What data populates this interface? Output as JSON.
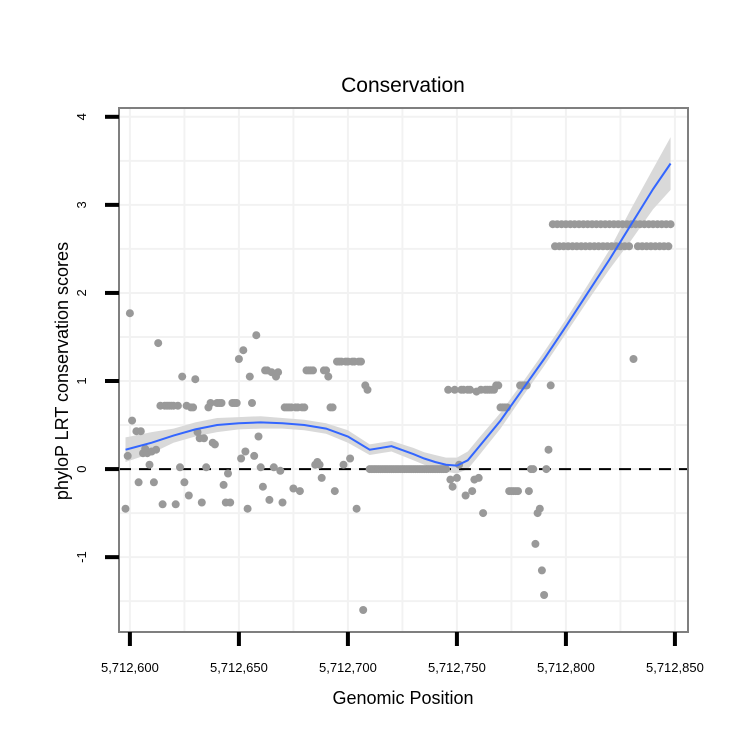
{
  "chart_data": {
    "type": "scatter",
    "title": "Conservation",
    "xlabel": "Genomic Position",
    "ylabel": "phyloP LRT conservation scores",
    "xlim": [
      5712595,
      5712856
    ],
    "ylim": [
      -1.85,
      4.1
    ],
    "x_ticks": [
      5712600,
      5712650,
      5712700,
      5712750,
      5712800,
      5712850
    ],
    "x_tick_labels": [
      "5,712,600",
      "5,712,650",
      "5,712,700",
      "5,712,750",
      "5,712,800",
      "5,712,850"
    ],
    "y_ticks": [
      -1,
      0,
      1,
      2,
      3,
      4
    ],
    "y_tick_labels": [
      "-1",
      "0",
      "1",
      "2",
      "3",
      "4"
    ],
    "grid": true,
    "colors": {
      "points": "#999999",
      "smooth_line": "#3366ff",
      "ribbon": "#d9d9d9",
      "panel_border": "#7f7f7f",
      "grid": "#f2f2f2",
      "reference_line": "#000000"
    },
    "reference_line": {
      "y": 0,
      "style": "dashed"
    },
    "series": [
      {
        "name": "phyloP points",
        "kind": "points",
        "points": [
          [
            5712598,
            -0.45
          ],
          [
            5712599,
            0.15
          ],
          [
            5712600,
            1.77
          ],
          [
            5712601,
            0.55
          ],
          [
            5712603,
            0.43
          ],
          [
            5712604,
            -0.15
          ],
          [
            5712605,
            0.43
          ],
          [
            5712606,
            0.18
          ],
          [
            5712607,
            0.23
          ],
          [
            5712608,
            0.18
          ],
          [
            5712609,
            0.05
          ],
          [
            5712610,
            0.2
          ],
          [
            5712611,
            -0.15
          ],
          [
            5712612,
            0.22
          ],
          [
            5712613,
            1.43
          ],
          [
            5712614,
            0.72
          ],
          [
            5712615,
            -0.4
          ],
          [
            5712616,
            0.72
          ],
          [
            5712617,
            0.72
          ],
          [
            5712618,
            0.72
          ],
          [
            5712619,
            0.72
          ],
          [
            5712620,
            0.72
          ],
          [
            5712621,
            -0.4
          ],
          [
            5712622,
            0.72
          ],
          [
            5712623,
            0.02
          ],
          [
            5712624,
            1.05
          ],
          [
            5712625,
            -0.15
          ],
          [
            5712626,
            0.72
          ],
          [
            5712627,
            -0.3
          ],
          [
            5712628,
            0.7
          ],
          [
            5712629,
            0.7
          ],
          [
            5712630,
            1.02
          ],
          [
            5712631,
            0.42
          ],
          [
            5712632,
            0.35
          ],
          [
            5712633,
            -0.38
          ],
          [
            5712634,
            0.35
          ],
          [
            5712635,
            0.02
          ],
          [
            5712636,
            0.7
          ],
          [
            5712637,
            0.75
          ],
          [
            5712638,
            0.3
          ],
          [
            5712639,
            0.28
          ],
          [
            5712640,
            0.75
          ],
          [
            5712641,
            0.75
          ],
          [
            5712642,
            0.75
          ],
          [
            5712643,
            -0.18
          ],
          [
            5712644,
            -0.38
          ],
          [
            5712645,
            -0.05
          ],
          [
            5712646,
            -0.38
          ],
          [
            5712647,
            0.75
          ],
          [
            5712648,
            0.75
          ],
          [
            5712649,
            0.75
          ],
          [
            5712650,
            1.25
          ],
          [
            5712651,
            0.12
          ],
          [
            5712652,
            1.35
          ],
          [
            5712653,
            0.2
          ],
          [
            5712654,
            -0.45
          ],
          [
            5712655,
            1.05
          ],
          [
            5712656,
            0.75
          ],
          [
            5712657,
            0.15
          ],
          [
            5712658,
            1.52
          ],
          [
            5712659,
            0.37
          ],
          [
            5712660,
            0.02
          ],
          [
            5712661,
            -0.2
          ],
          [
            5712662,
            1.12
          ],
          [
            5712663,
            1.12
          ],
          [
            5712664,
            -0.35
          ],
          [
            5712665,
            1.1
          ],
          [
            5712666,
            0.02
          ],
          [
            5712667,
            1.05
          ],
          [
            5712668,
            1.1
          ],
          [
            5712669,
            -0.02
          ],
          [
            5712670,
            -0.38
          ],
          [
            5712671,
            0.7
          ],
          [
            5712672,
            0.7
          ],
          [
            5712673,
            0.7
          ],
          [
            5712674,
            0.7
          ],
          [
            5712675,
            -0.22
          ],
          [
            5712676,
            0.7
          ],
          [
            5712677,
            0.7
          ],
          [
            5712678,
            -0.25
          ],
          [
            5712679,
            0.7
          ],
          [
            5712680,
            0.7
          ],
          [
            5712681,
            1.12
          ],
          [
            5712682,
            1.12
          ],
          [
            5712683,
            1.12
          ],
          [
            5712684,
            1.12
          ],
          [
            5712685,
            0.05
          ],
          [
            5712686,
            0.08
          ],
          [
            5712687,
            0.05
          ],
          [
            5712688,
            -0.1
          ],
          [
            5712689,
            1.12
          ],
          [
            5712690,
            1.12
          ],
          [
            5712691,
            1.05
          ],
          [
            5712692,
            0.7
          ],
          [
            5712693,
            0.7
          ],
          [
            5712694,
            -0.25
          ],
          [
            5712695,
            1.22
          ],
          [
            5712696,
            1.22
          ],
          [
            5712697,
            1.22
          ],
          [
            5712698,
            0.05
          ],
          [
            5712699,
            1.22
          ],
          [
            5712700,
            1.22
          ],
          [
            5712701,
            0.12
          ],
          [
            5712702,
            1.22
          ],
          [
            5712703,
            1.22
          ],
          [
            5712704,
            -0.45
          ],
          [
            5712705,
            1.22
          ],
          [
            5712706,
            1.22
          ],
          [
            5712707,
            -1.6
          ],
          [
            5712708,
            0.95
          ],
          [
            5712709,
            0.9
          ],
          [
            5712710,
            0.0
          ],
          [
            5712711,
            0.0
          ],
          [
            5712712,
            0.0
          ],
          [
            5712713,
            0.0
          ],
          [
            5712714,
            0.0
          ],
          [
            5712715,
            0.0
          ],
          [
            5712716,
            0.0
          ],
          [
            5712717,
            0.0
          ],
          [
            5712718,
            0.0
          ],
          [
            5712719,
            0.0
          ],
          [
            5712720,
            0.0
          ],
          [
            5712721,
            0.0
          ],
          [
            5712722,
            0.0
          ],
          [
            5712723,
            0.0
          ],
          [
            5712724,
            0.0
          ],
          [
            5712725,
            0.0
          ],
          [
            5712726,
            0.0
          ],
          [
            5712727,
            0.0
          ],
          [
            5712728,
            0.0
          ],
          [
            5712729,
            0.0
          ],
          [
            5712730,
            0.0
          ],
          [
            5712731,
            0.0
          ],
          [
            5712732,
            0.0
          ],
          [
            5712733,
            0.0
          ],
          [
            5712734,
            0.0
          ],
          [
            5712735,
            0.0
          ],
          [
            5712736,
            0.0
          ],
          [
            5712737,
            0.0
          ],
          [
            5712738,
            0.0
          ],
          [
            5712739,
            0.0
          ],
          [
            5712740,
            0.0
          ],
          [
            5712741,
            0.0
          ],
          [
            5712742,
            0.0
          ],
          [
            5712743,
            0.0
          ],
          [
            5712744,
            0.0
          ],
          [
            5712745,
            0.0
          ],
          [
            5712746,
            0.9
          ],
          [
            5712747,
            -0.12
          ],
          [
            5712748,
            -0.2
          ],
          [
            5712749,
            0.9
          ],
          [
            5712750,
            -0.1
          ],
          [
            5712751,
            0.05
          ],
          [
            5712752,
            0.9
          ],
          [
            5712753,
            0.9
          ],
          [
            5712754,
            -0.3
          ],
          [
            5712755,
            0.9
          ],
          [
            5712756,
            0.9
          ],
          [
            5712757,
            -0.25
          ],
          [
            5712758,
            -0.12
          ],
          [
            5712759,
            0.88
          ],
          [
            5712760,
            -0.1
          ],
          [
            5712761,
            0.9
          ],
          [
            5712762,
            -0.5
          ],
          [
            5712763,
            0.9
          ],
          [
            5712764,
            0.9
          ],
          [
            5712765,
            0.9
          ],
          [
            5712766,
            0.9
          ],
          [
            5712767,
            0.9
          ],
          [
            5712768,
            0.95
          ],
          [
            5712769,
            0.95
          ],
          [
            5712770,
            0.7
          ],
          [
            5712771,
            0.7
          ],
          [
            5712772,
            0.7
          ],
          [
            5712773,
            0.7
          ],
          [
            5712774,
            -0.25
          ],
          [
            5712775,
            -0.25
          ],
          [
            5712776,
            -0.25
          ],
          [
            5712777,
            -0.25
          ],
          [
            5712778,
            -0.25
          ],
          [
            5712779,
            0.95
          ],
          [
            5712780,
            0.95
          ],
          [
            5712781,
            0.95
          ],
          [
            5712782,
            0.95
          ],
          [
            5712783,
            -0.25
          ],
          [
            5712784,
            0.0
          ],
          [
            5712785,
            0.0
          ],
          [
            5712786,
            -0.85
          ],
          [
            5712787,
            -0.5
          ],
          [
            5712788,
            -0.45
          ],
          [
            5712789,
            -1.15
          ],
          [
            5712790,
            -1.43
          ],
          [
            5712791,
            0.0
          ],
          [
            5712792,
            0.22
          ],
          [
            5712793,
            0.95
          ],
          [
            5712794,
            2.78
          ],
          [
            5712795,
            2.53
          ],
          [
            5712796,
            2.78
          ],
          [
            5712797,
            2.53
          ],
          [
            5712798,
            2.78
          ],
          [
            5712799,
            2.53
          ],
          [
            5712800,
            2.78
          ],
          [
            5712801,
            2.53
          ],
          [
            5712802,
            2.78
          ],
          [
            5712803,
            2.53
          ],
          [
            5712804,
            2.78
          ],
          [
            5712805,
            2.53
          ],
          [
            5712806,
            2.78
          ],
          [
            5712807,
            2.53
          ],
          [
            5712808,
            2.78
          ],
          [
            5712809,
            2.53
          ],
          [
            5712810,
            2.78
          ],
          [
            5712811,
            2.53
          ],
          [
            5712812,
            2.78
          ],
          [
            5712813,
            2.53
          ],
          [
            5712814,
            2.78
          ],
          [
            5712815,
            2.53
          ],
          [
            5712816,
            2.78
          ],
          [
            5712817,
            2.53
          ],
          [
            5712818,
            2.78
          ],
          [
            5712819,
            2.53
          ],
          [
            5712820,
            2.78
          ],
          [
            5712821,
            2.53
          ],
          [
            5712822,
            2.78
          ],
          [
            5712823,
            2.53
          ],
          [
            5712824,
            2.78
          ],
          [
            5712825,
            2.53
          ],
          [
            5712826,
            2.78
          ],
          [
            5712827,
            2.53
          ],
          [
            5712828,
            2.78
          ],
          [
            5712829,
            2.53
          ],
          [
            5712830,
            2.78
          ],
          [
            5712831,
            1.25
          ],
          [
            5712832,
            2.78
          ],
          [
            5712833,
            2.53
          ],
          [
            5712834,
            2.78
          ],
          [
            5712835,
            2.53
          ],
          [
            5712836,
            2.78
          ],
          [
            5712837,
            2.53
          ],
          [
            5712838,
            2.78
          ],
          [
            5712839,
            2.53
          ],
          [
            5712840,
            2.78
          ],
          [
            5712841,
            2.53
          ],
          [
            5712842,
            2.78
          ],
          [
            5712843,
            2.53
          ],
          [
            5712844,
            2.78
          ],
          [
            5712845,
            2.53
          ],
          [
            5712846,
            2.78
          ],
          [
            5712847,
            2.53
          ],
          [
            5712848,
            2.78
          ]
        ]
      },
      {
        "name": "loess smooth",
        "kind": "line",
        "x": [
          5712598,
          5712610,
          5712620,
          5712630,
          5712640,
          5712650,
          5712660,
          5712670,
          5712680,
          5712690,
          5712700,
          5712710,
          5712720,
          5712730,
          5712735,
          5712740,
          5712745,
          5712750,
          5712755,
          5712760,
          5712770,
          5712780,
          5712790,
          5712800,
          5712810,
          5712820,
          5712830,
          5712840,
          5712848
        ],
        "y": [
          0.22,
          0.3,
          0.38,
          0.45,
          0.5,
          0.52,
          0.53,
          0.52,
          0.5,
          0.46,
          0.37,
          0.22,
          0.26,
          0.17,
          0.12,
          0.08,
          0.05,
          0.04,
          0.1,
          0.25,
          0.55,
          0.9,
          1.25,
          1.62,
          2.0,
          2.38,
          2.78,
          3.18,
          3.47
        ],
        "ci_low": [
          0.08,
          0.18,
          0.3,
          0.37,
          0.42,
          0.45,
          0.46,
          0.46,
          0.44,
          0.4,
          0.3,
          0.16,
          0.2,
          0.1,
          0.05,
          0.0,
          -0.03,
          -0.05,
          0.0,
          0.15,
          0.46,
          0.82,
          1.17,
          1.54,
          1.91,
          2.27,
          2.6,
          2.95,
          3.17
        ],
        "ci_high": [
          0.36,
          0.42,
          0.46,
          0.53,
          0.58,
          0.59,
          0.6,
          0.58,
          0.56,
          0.52,
          0.44,
          0.28,
          0.32,
          0.24,
          0.19,
          0.16,
          0.13,
          0.13,
          0.2,
          0.35,
          0.64,
          0.98,
          1.33,
          1.7,
          2.09,
          2.49,
          2.96,
          3.41,
          3.77
        ]
      }
    ]
  }
}
